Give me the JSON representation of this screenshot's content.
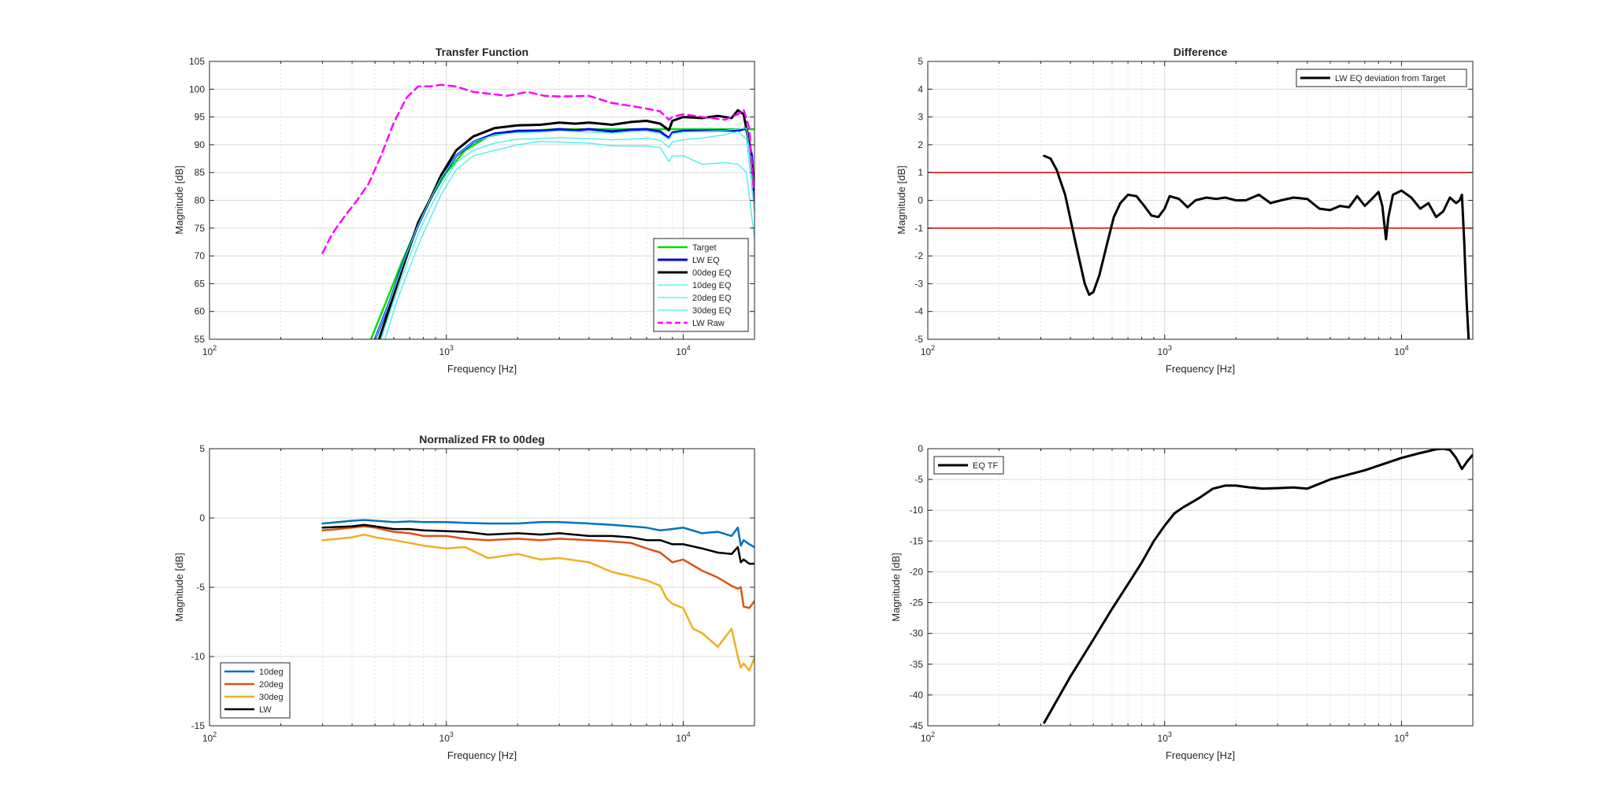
{
  "chart_data": [
    {
      "id": "tf",
      "type": "line",
      "title": "Transfer Function",
      "xlabel": "Frequency [Hz]",
      "ylabel": "Magnitude [dB]",
      "xscale": "log",
      "xlim": [
        100,
        20000
      ],
      "ylim": [
        55,
        105
      ],
      "yticks": [
        55,
        60,
        65,
        70,
        75,
        80,
        85,
        90,
        95,
        100,
        105
      ],
      "xticks": [
        {
          "base": "10",
          "exp": "2"
        },
        {
          "base": "10",
          "exp": "3"
        },
        {
          "base": "10",
          "exp": "4"
        }
      ],
      "grid": true,
      "legend_position": "bottom-right",
      "series": [
        {
          "name": "Target",
          "color": "#00e000",
          "width": 2.5,
          "dash": "",
          "x": [
            480,
            560,
            650,
            750,
            850,
            1000,
            1200,
            1500,
            2000,
            3000,
            5000,
            8000,
            10000,
            15000,
            20000
          ],
          "y": [
            55,
            62,
            69,
            75,
            80,
            85,
            89,
            91.5,
            92.5,
            92.8,
            92.8,
            92.8,
            92.8,
            92.8,
            92.8
          ]
        },
        {
          "name": "LW EQ",
          "color": "#0000e6",
          "width": 3,
          "dash": "",
          "x": [
            500,
            580,
            660,
            750,
            850,
            950,
            1100,
            1300,
            1600,
            2000,
            2500,
            3000,
            3500,
            4000,
            5000,
            6000,
            7000,
            8000,
            8700,
            9000,
            10000,
            12000,
            15000,
            17000,
            18500,
            19500,
            20000
          ],
          "y": [
            55,
            62,
            69,
            75,
            80,
            84,
            88,
            90.5,
            92,
            92.5,
            92.5,
            92.8,
            92.6,
            92.8,
            92.4,
            92.7,
            92.8,
            92.4,
            91.2,
            92.2,
            92.5,
            92.5,
            92.6,
            92.5,
            93,
            88,
            80
          ]
        },
        {
          "name": "00deg EQ",
          "color": "#000000",
          "width": 3,
          "dash": "",
          "x": [
            520,
            600,
            680,
            760,
            850,
            950,
            1100,
            1300,
            1600,
            2000,
            2500,
            3000,
            3500,
            4000,
            5000,
            6000,
            7000,
            8000,
            8700,
            9000,
            10000,
            12000,
            14000,
            16000,
            17000,
            18000,
            19000,
            20000
          ],
          "y": [
            55,
            63,
            70,
            76,
            80,
            84.5,
            89,
            91.5,
            93,
            93.5,
            93.6,
            94,
            93.8,
            94,
            93.6,
            94.1,
            94.3,
            93.8,
            92.6,
            94.3,
            95,
            94.8,
            95.2,
            94.8,
            96.2,
            95.5,
            90,
            82
          ]
        },
        {
          "name": "10deg EQ",
          "color": "#44eef0",
          "width": 1.3,
          "dash": "",
          "x": [
            500,
            580,
            660,
            750,
            850,
            950,
            1100,
            1300,
            1600,
            2000,
            2500,
            3000,
            4000,
            5000,
            6000,
            7000,
            8000,
            8700,
            9000,
            10000,
            12000,
            15000,
            17000,
            18500,
            20000
          ],
          "y": [
            55,
            62,
            69,
            75,
            80,
            84,
            88,
            90.5,
            91.8,
            92.2,
            92.3,
            92.5,
            92.3,
            92.1,
            92.4,
            92.5,
            92,
            91,
            92,
            92.3,
            92.4,
            92.6,
            92.8,
            93,
            82
          ]
        },
        {
          "name": "20deg EQ",
          "color": "#44eef0",
          "width": 1.3,
          "dash": "",
          "x": [
            530,
            600,
            680,
            760,
            850,
            950,
            1100,
            1300,
            1600,
            2000,
            2500,
            3000,
            4000,
            5000,
            6000,
            7000,
            8000,
            8700,
            9000,
            10000,
            12000,
            15000,
            17000,
            18500,
            20000
          ],
          "y": [
            55,
            62,
            68.5,
            74,
            78.5,
            82.5,
            86.8,
            89,
            90.3,
            91,
            91.1,
            91.3,
            91.1,
            90.9,
            91,
            91.2,
            90.8,
            89.5,
            90.5,
            90.9,
            91.2,
            91.8,
            92.4,
            91,
            78
          ]
        },
        {
          "name": "30deg EQ",
          "color": "#44eef0",
          "width": 1.3,
          "dash": "",
          "x": [
            550,
            620,
            700,
            780,
            860,
            950,
            1100,
            1300,
            1600,
            2000,
            2500,
            3000,
            4000,
            5000,
            6000,
            7000,
            8000,
            8700,
            9000,
            10000,
            12000,
            15000,
            17000,
            18500,
            20000
          ],
          "y": [
            55,
            62,
            68,
            73,
            77,
            81,
            85.5,
            88,
            89,
            90,
            90.6,
            90.5,
            90.3,
            89.8,
            89.8,
            89.8,
            89.5,
            87,
            88,
            88,
            86.5,
            86.8,
            86.5,
            85,
            73
          ]
        },
        {
          "name": "LW Raw",
          "color": "#ff00ff",
          "width": 2.5,
          "dash": "9,6",
          "x": [
            300,
            330,
            370,
            420,
            470,
            530,
            600,
            680,
            760,
            850,
            950,
            1100,
            1300,
            1500,
            1800,
            2200,
            2600,
            3000,
            4000,
            5000,
            6000,
            7000,
            8000,
            8700,
            9000,
            10000,
            12000,
            15000,
            17000,
            18000,
            19000,
            20000
          ],
          "y": [
            70.5,
            74,
            77,
            80,
            83,
            88,
            94,
            98.5,
            100.5,
            100.5,
            100.8,
            100.5,
            99.5,
            99.2,
            98.8,
            99.5,
            98.8,
            98.7,
            98.8,
            97.5,
            97,
            96.5,
            96,
            94.5,
            95,
            95.5,
            95,
            94.5,
            95.5,
            96.3,
            93,
            80
          ]
        }
      ]
    },
    {
      "id": "diff",
      "type": "line",
      "title": "Difference",
      "xlabel": "Frequency [Hz]",
      "ylabel": "Magnitude [dB]",
      "xscale": "log",
      "xlim": [
        100,
        20000
      ],
      "ylim": [
        -5,
        5
      ],
      "yticks": [
        -5,
        -4,
        -3,
        -2,
        -1,
        0,
        1,
        2,
        3,
        4,
        5
      ],
      "xticks": [
        {
          "base": "10",
          "exp": "2"
        },
        {
          "base": "10",
          "exp": "3"
        },
        {
          "base": "10",
          "exp": "4"
        }
      ],
      "grid": true,
      "legend_position": "top-right",
      "reference_lines": [
        {
          "y": 1,
          "color": "#e00000"
        },
        {
          "y": -1,
          "color": "#e00000"
        }
      ],
      "series": [
        {
          "name": "LW EQ deviation from Target",
          "color": "#000000",
          "width": 3,
          "dash": "",
          "x": [
            310,
            330,
            350,
            380,
            420,
            460,
            480,
            500,
            530,
            570,
            610,
            650,
            700,
            760,
            820,
            880,
            940,
            1000,
            1050,
            1150,
            1250,
            1350,
            1500,
            1650,
            1800,
            2000,
            2200,
            2500,
            2800,
            3100,
            3500,
            4000,
            4500,
            5000,
            5500,
            6000,
            6500,
            7000,
            7500,
            8000,
            8300,
            8600,
            8800,
            9200,
            10000,
            11000,
            12000,
            13000,
            14000,
            15000,
            16000,
            17000,
            17600,
            18000,
            18400,
            18800,
            19200
          ],
          "y": [
            1.6,
            1.5,
            1.1,
            0.2,
            -1.5,
            -3.0,
            -3.4,
            -3.3,
            -2.7,
            -1.6,
            -0.6,
            -0.1,
            0.2,
            0.15,
            -0.2,
            -0.55,
            -0.6,
            -0.3,
            0.15,
            0.05,
            -0.25,
            0.0,
            0.1,
            0.05,
            0.1,
            0.0,
            0.0,
            0.2,
            -0.1,
            0.0,
            0.1,
            0.05,
            -0.3,
            -0.35,
            -0.2,
            -0.25,
            0.15,
            -0.2,
            0.05,
            0.3,
            -0.2,
            -1.4,
            -0.6,
            0.2,
            0.35,
            0.1,
            -0.3,
            -0.1,
            -0.6,
            -0.4,
            0.1,
            -0.1,
            0.0,
            0.2,
            -1.5,
            -3.5,
            -5.0
          ]
        }
      ]
    },
    {
      "id": "norm",
      "type": "line",
      "title": "Normalized FR to 00deg",
      "xlabel": "Frequency [Hz]",
      "ylabel": "Magnitude [dB]",
      "xscale": "log",
      "xlim": [
        100,
        20000
      ],
      "ylim": [
        -15,
        5
      ],
      "yticks": [
        -15,
        -10,
        -5,
        0,
        5
      ],
      "xticks": [
        {
          "base": "10",
          "exp": "2"
        },
        {
          "base": "10",
          "exp": "3"
        },
        {
          "base": "10",
          "exp": "4"
        }
      ],
      "grid": true,
      "legend_position": "bottom-left",
      "series": [
        {
          "name": "10deg",
          "color": "#0072bd",
          "width": 2.5,
          "dash": "",
          "x": [
            300,
            350,
            400,
            450,
            500,
            600,
            700,
            800,
            1000,
            1200,
            1500,
            2000,
            2500,
            3000,
            4000,
            5000,
            6000,
            7000,
            8000,
            9000,
            10000,
            12000,
            14000,
            16000,
            17000,
            17500,
            18000,
            19000,
            20000
          ],
          "y": [
            -0.4,
            -0.3,
            -0.2,
            -0.15,
            -0.2,
            -0.3,
            -0.25,
            -0.3,
            -0.3,
            -0.35,
            -0.4,
            -0.4,
            -0.3,
            -0.3,
            -0.4,
            -0.5,
            -0.6,
            -0.7,
            -0.9,
            -0.8,
            -0.7,
            -1.1,
            -1.0,
            -1.3,
            -0.7,
            -2.0,
            -1.6,
            -1.9,
            -2.1
          ]
        },
        {
          "name": "20deg",
          "color": "#d95319",
          "width": 2.5,
          "dash": "",
          "x": [
            300,
            350,
            400,
            450,
            500,
            600,
            700,
            800,
            1000,
            1200,
            1500,
            2000,
            2500,
            3000,
            4000,
            5000,
            6000,
            7000,
            8000,
            9000,
            10000,
            12000,
            14000,
            16000,
            17000,
            17500,
            18000,
            19000,
            20000
          ],
          "y": [
            -0.9,
            -0.8,
            -0.7,
            -0.6,
            -0.7,
            -1.0,
            -1.1,
            -1.3,
            -1.3,
            -1.5,
            -1.6,
            -1.5,
            -1.6,
            -1.5,
            -1.6,
            -1.7,
            -1.8,
            -2.2,
            -2.5,
            -3.2,
            -3.0,
            -3.8,
            -4.3,
            -4.9,
            -5.1,
            -5.0,
            -6.4,
            -6.5,
            -6.0
          ]
        },
        {
          "name": "30deg",
          "color": "#edb120",
          "width": 2.5,
          "dash": "",
          "x": [
            300,
            350,
            400,
            450,
            500,
            600,
            700,
            800,
            1000,
            1200,
            1500,
            2000,
            2500,
            3000,
            4000,
            5000,
            6000,
            7000,
            8000,
            8500,
            9000,
            10000,
            11000,
            12000,
            14000,
            16000,
            17000,
            17500,
            18000,
            19000,
            20000
          ],
          "y": [
            -1.6,
            -1.5,
            -1.4,
            -1.2,
            -1.4,
            -1.6,
            -1.8,
            -2.0,
            -2.2,
            -2.1,
            -2.9,
            -2.6,
            -3.0,
            -2.9,
            -3.2,
            -3.9,
            -4.2,
            -4.5,
            -4.9,
            -5.8,
            -6.2,
            -6.5,
            -8.0,
            -8.3,
            -9.3,
            -8.0,
            -10.0,
            -10.8,
            -10.5,
            -11.0,
            -10.1
          ]
        },
        {
          "name": "LW",
          "color": "#000000",
          "width": 2.5,
          "dash": "",
          "x": [
            300,
            350,
            400,
            450,
            500,
            600,
            700,
            800,
            1000,
            1200,
            1500,
            2000,
            2500,
            3000,
            4000,
            5000,
            6000,
            7000,
            8000,
            9000,
            10000,
            12000,
            14000,
            16000,
            17000,
            17500,
            18000,
            19000,
            20000
          ],
          "y": [
            -0.7,
            -0.65,
            -0.6,
            -0.5,
            -0.6,
            -0.8,
            -0.8,
            -0.9,
            -0.95,
            -1.0,
            -1.2,
            -1.1,
            -1.2,
            -1.1,
            -1.3,
            -1.3,
            -1.4,
            -1.6,
            -1.6,
            -1.9,
            -1.9,
            -2.2,
            -2.5,
            -2.6,
            -2.1,
            -3.2,
            -3.0,
            -3.3,
            -3.3
          ]
        }
      ]
    },
    {
      "id": "eqtf",
      "type": "line",
      "title": "",
      "xlabel": "Frequency [Hz]",
      "ylabel": "Magnitude [dB]",
      "xscale": "log",
      "xlim": [
        100,
        20000
      ],
      "ylim": [
        -45,
        0
      ],
      "yticks": [
        -45,
        -40,
        -35,
        -30,
        -25,
        -20,
        -15,
        -10,
        -5,
        0
      ],
      "xticks": [
        {
          "base": "10",
          "exp": "2"
        },
        {
          "base": "10",
          "exp": "3"
        },
        {
          "base": "10",
          "exp": "4"
        }
      ],
      "grid": true,
      "legend_position": "top-left",
      "series": [
        {
          "name": "EQ TF",
          "color": "#000000",
          "width": 3,
          "dash": "",
          "x": [
            310,
            400,
            500,
            600,
            700,
            800,
            900,
            1000,
            1100,
            1200,
            1400,
            1600,
            1800,
            2000,
            2300,
            2600,
            3000,
            3500,
            4000,
            5000,
            7000,
            10000,
            12000,
            14000,
            15000,
            16000,
            17000,
            18000,
            19000,
            20000
          ],
          "y": [
            -44.5,
            -37,
            -31,
            -26,
            -22,
            -18.5,
            -15,
            -12.5,
            -10.5,
            -9.5,
            -8,
            -6.5,
            -6,
            -6,
            -6.3,
            -6.5,
            -6.4,
            -6.3,
            -6.5,
            -5,
            -3.5,
            -1.5,
            -0.7,
            -0.1,
            0,
            -0.2,
            -1.5,
            -3.3,
            -2.0,
            -1.0
          ]
        }
      ]
    }
  ]
}
